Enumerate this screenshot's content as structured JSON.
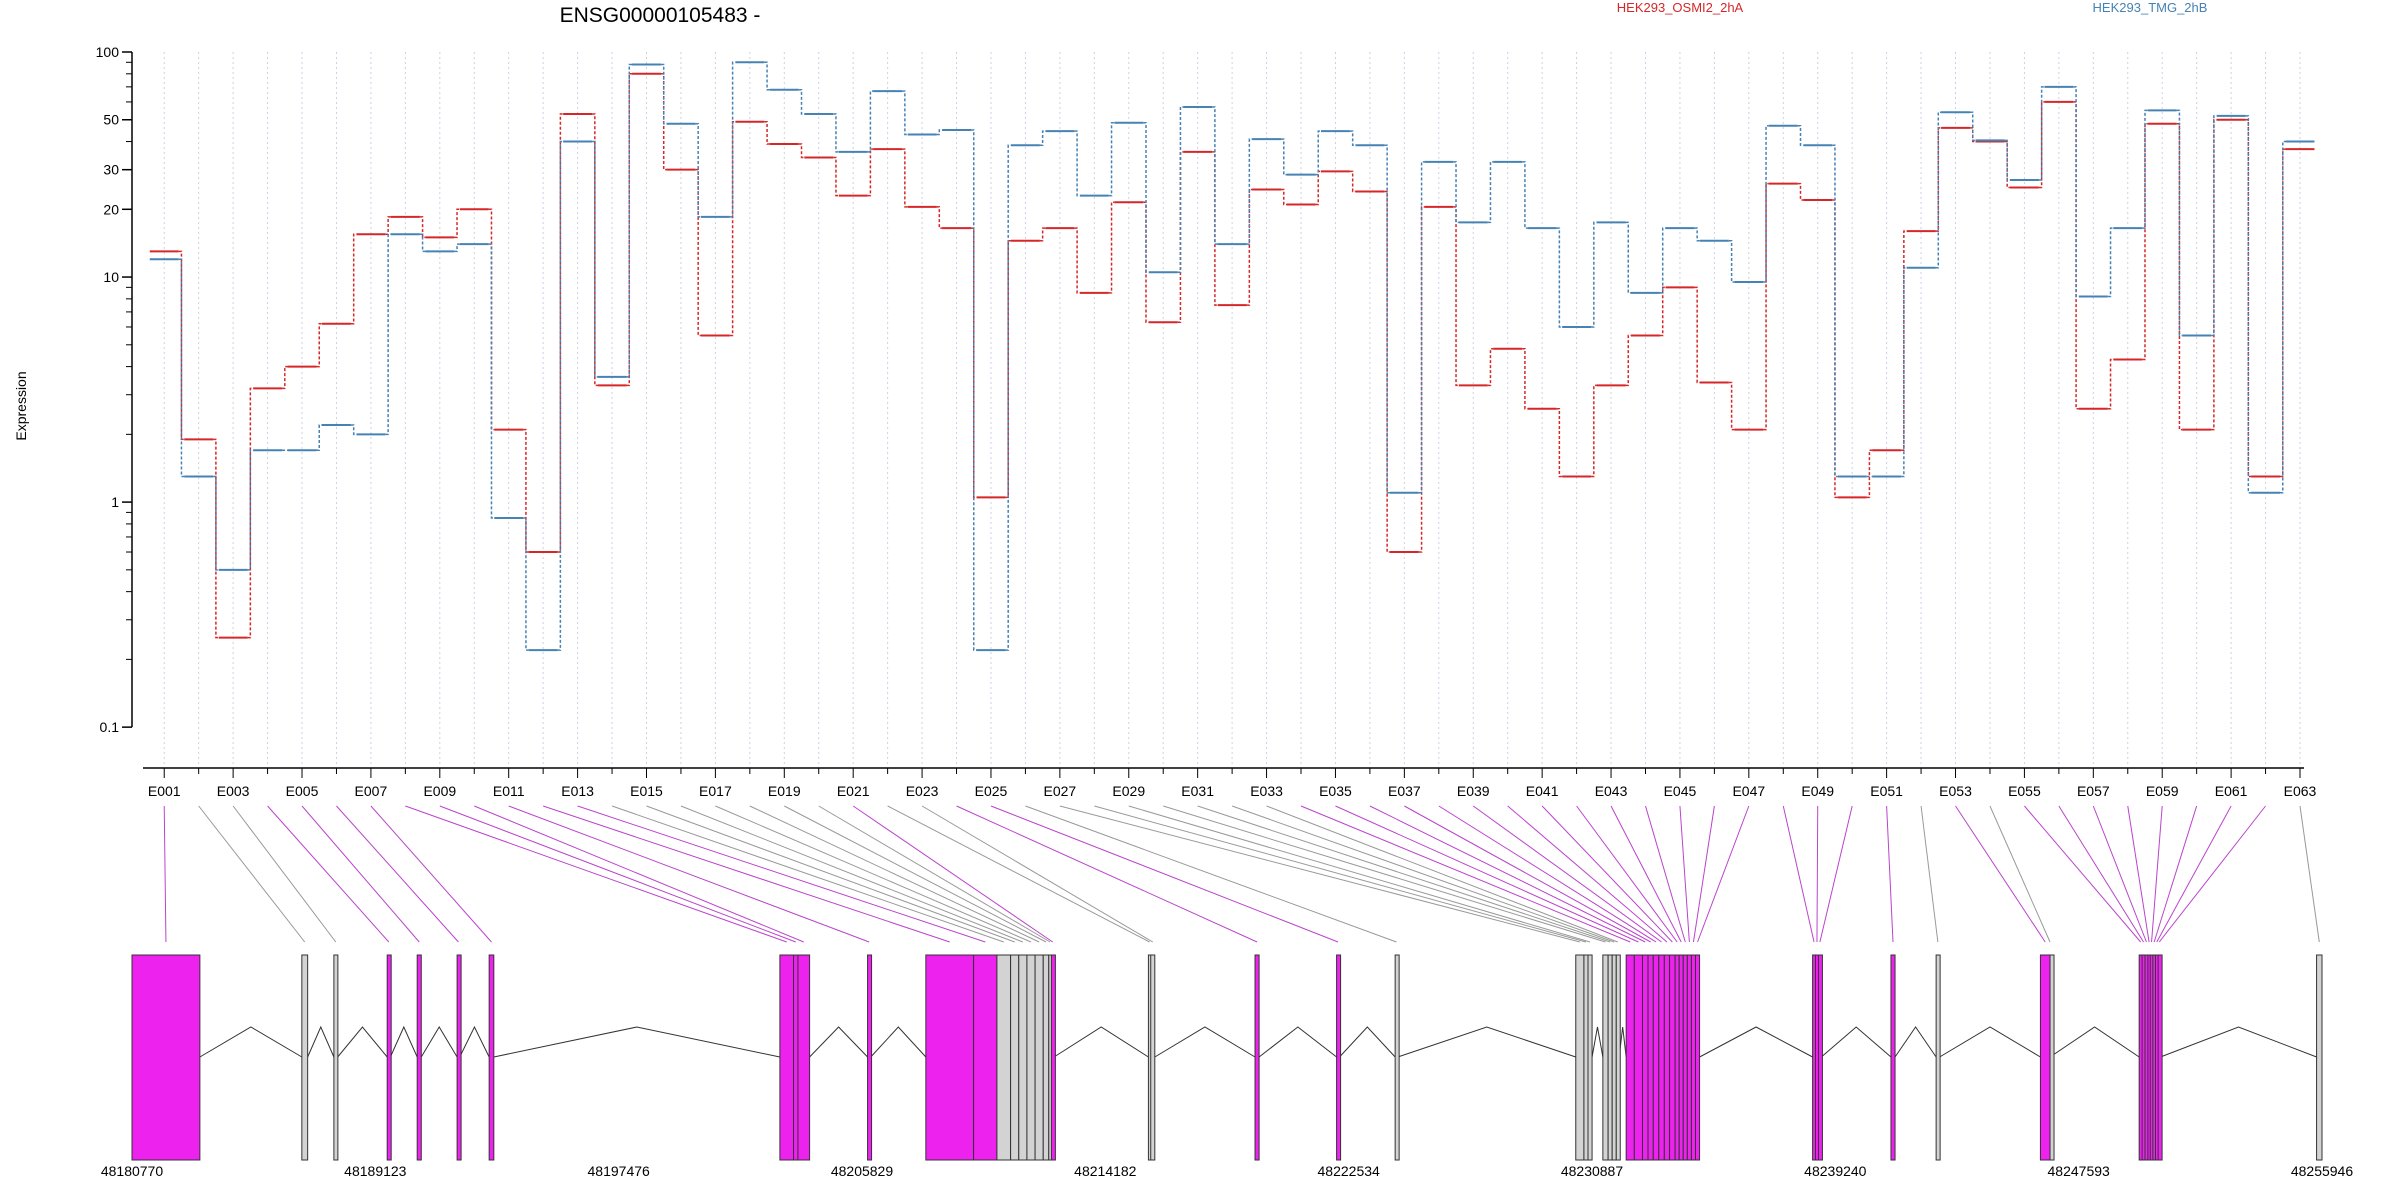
{
  "chart_data": {
    "type": "line",
    "title": "ENSG00000105483 -",
    "xlabel": "",
    "ylabel": "Expression",
    "y_scale": "log",
    "y_ticks": [
      0.1,
      1,
      10,
      20,
      30,
      50,
      100
    ],
    "ylim": [
      0.07,
      100
    ],
    "grid": "vertical dotted lines at each exon",
    "legend_placement": "top",
    "categories": [
      "E001",
      "E002",
      "E003",
      "E004",
      "E005",
      "E006",
      "E007",
      "E008",
      "E009",
      "E010",
      "E011",
      "E012",
      "E013",
      "E014",
      "E015",
      "E016",
      "E017",
      "E018",
      "E019",
      "E020",
      "E021",
      "E022",
      "E023",
      "E024",
      "E025",
      "E026",
      "E027",
      "E028",
      "E029",
      "E030",
      "E031",
      "E032",
      "E033",
      "E034",
      "E035",
      "E036",
      "E037",
      "E038",
      "E039",
      "E040",
      "E041",
      "E042",
      "E043",
      "E044",
      "E045",
      "E046",
      "E047",
      "E048",
      "E049",
      "E050",
      "E051",
      "E052",
      "E053",
      "E054",
      "E055",
      "E056",
      "E057",
      "E058",
      "E059",
      "E060",
      "E061",
      "E062",
      "E063"
    ],
    "series": [
      {
        "name": "HEK293_OSMI2_2hA",
        "color": "#d62728",
        "values": [
          13,
          1.9,
          0.25,
          3.2,
          4,
          6.2,
          15.5,
          18.5,
          15,
          20,
          2.1,
          0.6,
          53,
          3.3,
          80,
          30,
          5.5,
          49,
          39,
          34,
          23,
          37,
          20.5,
          16.5,
          1.05,
          14.5,
          16.5,
          8.5,
          21.5,
          6.3,
          36,
          7.5,
          24.5,
          21,
          29.5,
          24,
          0.6,
          20.5,
          3.3,
          4.8,
          2.6,
          1.3,
          3.3,
          5.5,
          9,
          3.4,
          2.1,
          26,
          22,
          1.05,
          1.7,
          16,
          46,
          40,
          25,
          60,
          2.6,
          4.3,
          48,
          2.1,
          50,
          1.3,
          37
        ]
      },
      {
        "name": "HEK293_TMG_2hB",
        "color": "#4682b4",
        "values": [
          12,
          1.3,
          0.5,
          1.7,
          1.7,
          2.2,
          2,
          15.5,
          13,
          14,
          0.85,
          0.22,
          40,
          3.6,
          88,
          48,
          18.5,
          90,
          68,
          53,
          36,
          67,
          43,
          45,
          0.22,
          38.5,
          44.5,
          23,
          48.5,
          10.5,
          57,
          14,
          41,
          28.5,
          44.5,
          38.5,
          1.1,
          32.5,
          17.5,
          32.5,
          16.5,
          6,
          17.5,
          8.5,
          16.5,
          14.5,
          9.5,
          47,
          38.5,
          1.3,
          1.3,
          11,
          54,
          40.5,
          27,
          70,
          8.2,
          16.5,
          55,
          5.5,
          52,
          1.1,
          40
        ]
      }
    ],
    "x_axis_tick_labels": [
      "E001",
      "E003",
      "E005",
      "E007",
      "E009",
      "E011",
      "E013",
      "E015",
      "E017",
      "E019",
      "E021",
      "E023",
      "E025",
      "E027",
      "E029",
      "E031",
      "E033",
      "E035",
      "E037",
      "E039",
      "E041",
      "E043",
      "E045",
      "E047",
      "E049",
      "E051",
      "E053",
      "E055",
      "E057",
      "E059",
      "E061",
      "E063"
    ],
    "gene_model": {
      "genomic_tick_labels": [
        "48180770",
        "48189123",
        "48197476",
        "48205829",
        "48214182",
        "48222534",
        "48230887",
        "48239240",
        "48247593",
        "48255946"
      ],
      "genomic_range": [
        48180770,
        48255946
      ],
      "highlight_color": "#ee22ee",
      "normal_color": "#d3d3d3",
      "exons": [
        {
          "id": "E001",
          "start": 48180770,
          "end": 48183100,
          "highlight": true
        },
        {
          "id": "E002",
          "start": 48186600,
          "end": 48186800,
          "highlight": false
        },
        {
          "id": "E003",
          "start": 48187700,
          "end": 48187830,
          "highlight": false
        },
        {
          "id": "E004",
          "start": 48189530,
          "end": 48189640,
          "highlight": true
        },
        {
          "id": "E005",
          "start": 48190560,
          "end": 48190700,
          "highlight": true
        },
        {
          "id": "E006",
          "start": 48191930,
          "end": 48192020,
          "highlight": true
        },
        {
          "id": "E007",
          "start": 48193030,
          "end": 48193190,
          "highlight": true
        },
        {
          "id": "E008",
          "start": 48203010,
          "end": 48203480,
          "highlight": true
        },
        {
          "id": "E009",
          "start": 48203480,
          "end": 48203630,
          "highlight": true
        },
        {
          "id": "E010",
          "start": 48203630,
          "end": 48204030,
          "highlight": true
        },
        {
          "id": "E011",
          "start": 48206020,
          "end": 48206130,
          "highlight": true
        },
        {
          "id": "E012",
          "start": 48208020,
          "end": 48209660,
          "highlight": true
        },
        {
          "id": "E013",
          "start": 48209660,
          "end": 48210460,
          "highlight": true
        },
        {
          "id": "E014",
          "start": 48210460,
          "end": 48210930,
          "highlight": false
        },
        {
          "id": "E015",
          "start": 48210930,
          "end": 48211210,
          "highlight": false
        },
        {
          "id": "E016",
          "start": 48211210,
          "end": 48211490,
          "highlight": false
        },
        {
          "id": "E017",
          "start": 48211490,
          "end": 48211770,
          "highlight": false
        },
        {
          "id": "E018",
          "start": 48211770,
          "end": 48212050,
          "highlight": false
        },
        {
          "id": "E019",
          "start": 48212050,
          "end": 48212240,
          "highlight": false
        },
        {
          "id": "E020",
          "start": 48212240,
          "end": 48212330,
          "highlight": false
        },
        {
          "id": "E021",
          "start": 48212330,
          "end": 48212420,
          "highlight": true
        },
        {
          "id": "E022",
          "start": 48215660,
          "end": 48215740,
          "highlight": false
        },
        {
          "id": "E023",
          "start": 48215740,
          "end": 48215880,
          "highlight": false
        },
        {
          "id": "E024",
          "start": 48219320,
          "end": 48219460,
          "highlight": true
        },
        {
          "id": "E025",
          "start": 48222120,
          "end": 48222220,
          "highlight": true
        },
        {
          "id": "E026",
          "start": 48224130,
          "end": 48224220,
          "highlight": false
        },
        {
          "id": "E027",
          "start": 48230330,
          "end": 48230610,
          "highlight": false
        },
        {
          "id": "E028",
          "start": 48230610,
          "end": 48230750,
          "highlight": false
        },
        {
          "id": "E029",
          "start": 48230750,
          "end": 48230890,
          "highlight": false
        },
        {
          "id": "E030",
          "start": 48231260,
          "end": 48231440,
          "highlight": false
        },
        {
          "id": "E031",
          "start": 48231440,
          "end": 48231580,
          "highlight": false
        },
        {
          "id": "E032",
          "start": 48231580,
          "end": 48231720,
          "highlight": false
        },
        {
          "id": "E033",
          "start": 48231720,
          "end": 48231820,
          "highlight": false
        },
        {
          "id": "E034",
          "start": 48232060,
          "end": 48232340,
          "highlight": true
        },
        {
          "id": "E035",
          "start": 48232340,
          "end": 48232620,
          "highlight": true
        },
        {
          "id": "E036",
          "start": 48232620,
          "end": 48232810,
          "highlight": true
        },
        {
          "id": "E037",
          "start": 48232810,
          "end": 48232990,
          "highlight": true
        },
        {
          "id": "E038",
          "start": 48232990,
          "end": 48233180,
          "highlight": true
        },
        {
          "id": "E039",
          "start": 48233180,
          "end": 48233370,
          "highlight": true
        },
        {
          "id": "E040",
          "start": 48233370,
          "end": 48233550,
          "highlight": true
        },
        {
          "id": "E041",
          "start": 48233550,
          "end": 48233740,
          "highlight": true
        },
        {
          "id": "E042",
          "start": 48233740,
          "end": 48233880,
          "highlight": true
        },
        {
          "id": "E043",
          "start": 48233880,
          "end": 48234020,
          "highlight": true
        },
        {
          "id": "E044",
          "start": 48234020,
          "end": 48234160,
          "highlight": true
        },
        {
          "id": "E045",
          "start": 48234160,
          "end": 48234300,
          "highlight": true
        },
        {
          "id": "E046",
          "start": 48234300,
          "end": 48234440,
          "highlight": true
        },
        {
          "id": "E047",
          "start": 48234440,
          "end": 48234580,
          "highlight": true
        },
        {
          "id": "E048",
          "start": 48238460,
          "end": 48238560,
          "highlight": true
        },
        {
          "id": "E049",
          "start": 48238560,
          "end": 48238660,
          "highlight": true
        },
        {
          "id": "E050",
          "start": 48238660,
          "end": 48238760,
          "highlight": true
        },
        {
          "id": "E051",
          "start": 48241150,
          "end": 48241290,
          "highlight": true
        },
        {
          "id": "E052",
          "start": 48242700,
          "end": 48242820,
          "highlight": false
        },
        {
          "id": "E053",
          "start": 48246280,
          "end": 48246610,
          "highlight": true
        },
        {
          "id": "E054",
          "start": 48246610,
          "end": 48246610,
          "highlight": false
        },
        {
          "id": "E055",
          "start": 48249670,
          "end": 48249770,
          "highlight": true
        },
        {
          "id": "E056",
          "start": 48249770,
          "end": 48249870,
          "highlight": true
        },
        {
          "id": "E057",
          "start": 48249870,
          "end": 48249970,
          "highlight": true
        },
        {
          "id": "E058",
          "start": 48249970,
          "end": 48250050,
          "highlight": true
        },
        {
          "id": "E059",
          "start": 48250050,
          "end": 48250140,
          "highlight": true
        },
        {
          "id": "E060",
          "start": 48250140,
          "end": 48250230,
          "highlight": true
        },
        {
          "id": "E061",
          "start": 48250230,
          "end": 48250320,
          "highlight": true
        },
        {
          "id": "E062",
          "start": 48250320,
          "end": 48250400,
          "highlight": true
        },
        {
          "id": "E063",
          "start": 48255760,
          "end": 48255946,
          "highlight": false
        }
      ]
    }
  }
}
